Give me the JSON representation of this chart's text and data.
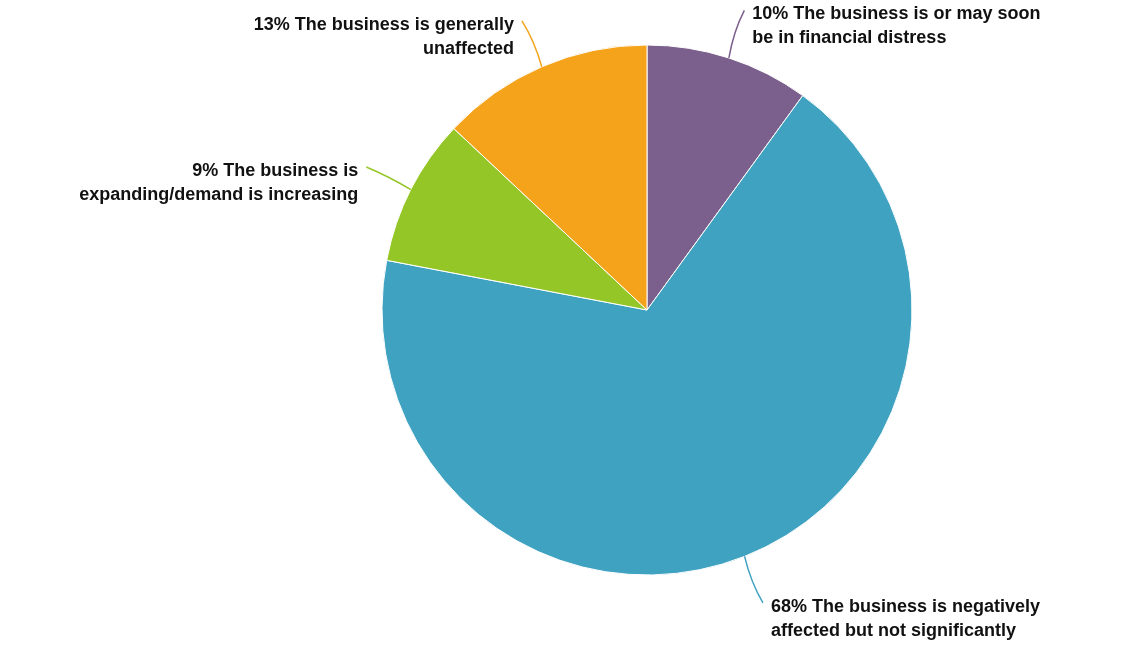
{
  "chart_data": {
    "type": "pie",
    "categories": [
      "The business is or may soon be in financial distress",
      "The business is negatively affected but not significantly",
      "The business is expanding/demand is increasing",
      "The business is generally unaffected"
    ],
    "values": [
      10,
      68,
      9,
      13
    ],
    "colors": [
      "#7b5f8c",
      "#3fa2c1",
      "#95c627",
      "#f4a31a"
    ],
    "value_labels": [
      "10%",
      "68%",
      "9%",
      "13%"
    ]
  }
}
